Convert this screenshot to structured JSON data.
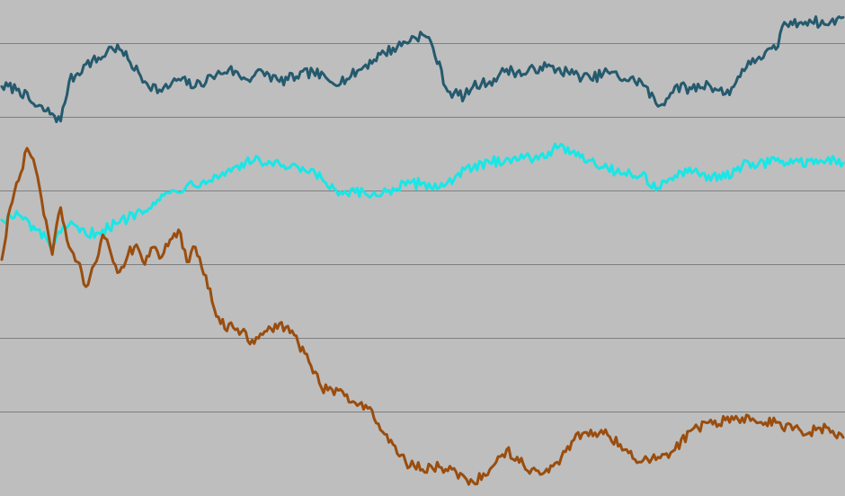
{
  "chart_data": {
    "type": "line",
    "title": "",
    "xlabel": "",
    "ylabel": "",
    "grid": true,
    "legend": "none",
    "xlim": [
      0,
      100
    ],
    "ylim": [
      0,
      100
    ],
    "y_gridlines": [
      16.8,
      31.7,
      46.6,
      61.4,
      76.3,
      91.2
    ],
    "background": "#bebebe",
    "gridline_color": "#7f7f7f",
    "series": [
      {
        "color": "#255a6e",
        "x": [
          0,
          2,
          4,
          6,
          7,
          8,
          10,
          12,
          13,
          14,
          15,
          17,
          19,
          21,
          23,
          25,
          27,
          29,
          31,
          33,
          35,
          37,
          39,
          41,
          43,
          45,
          47,
          49,
          50,
          51,
          53,
          55,
          56,
          57,
          58,
          59,
          60,
          62,
          64,
          66,
          68,
          70,
          72,
          74,
          76,
          78,
          79,
          80,
          82,
          84,
          86,
          87,
          88,
          89,
          90,
          92,
          93,
          94,
          95,
          96,
          98,
          100
        ],
        "y": [
          82.5,
          82,
          78.5,
          77,
          75.5,
          83.5,
          87,
          88.5,
          90.5,
          90,
          88,
          83.5,
          81.5,
          84,
          82.5,
          84.5,
          86,
          84,
          85.5,
          83.5,
          84.5,
          85.5,
          83.5,
          84,
          86.5,
          89,
          90.5,
          92.5,
          93,
          91.5,
          81.5,
          80.5,
          82.5,
          83,
          83.5,
          84.5,
          86,
          85,
          86.5,
          86,
          85,
          84,
          85.5,
          84,
          83.5,
          78.5,
          80,
          82.5,
          82,
          83,
          81,
          82.5,
          86,
          87,
          88.5,
          90,
          95.5,
          95,
          95.5,
          96,
          95,
          96.5
        ]
      },
      {
        "color": "#1ae6e6",
        "x": [
          0,
          2,
          4,
          6,
          8,
          10,
          12,
          14,
          16,
          18,
          20,
          22,
          24,
          26,
          28,
          30,
          32,
          34,
          36,
          38,
          40,
          42,
          44,
          46,
          48,
          50,
          52,
          54,
          56,
          58,
          60,
          62,
          64,
          66,
          68,
          70,
          72,
          74,
          76,
          78,
          80,
          82,
          84,
          86,
          88,
          90,
          92,
          94,
          96,
          98,
          100
        ],
        "y": [
          55.5,
          56.5,
          53.5,
          50.5,
          54.5,
          52.5,
          53.5,
          55,
          57,
          59,
          61,
          62.5,
          63.5,
          64.5,
          66.5,
          67.5,
          67,
          66,
          65.5,
          64,
          60.5,
          61,
          60.5,
          61.5,
          62.5,
          63,
          62,
          64.5,
          66,
          67,
          68,
          68,
          68.5,
          70,
          69.5,
          67.5,
          66,
          65,
          64.5,
          62,
          64.5,
          65,
          64.5,
          64,
          66.5,
          67,
          67.5,
          67,
          67.5,
          67.5,
          67
        ]
      },
      {
        "color": "#9a4d0e",
        "x": [
          0,
          1,
          2,
          3,
          4,
          5,
          6,
          7,
          8,
          9,
          10,
          11,
          12,
          13,
          14,
          15,
          16,
          17,
          18,
          19,
          20,
          21,
          22,
          23,
          24,
          26,
          28,
          30,
          32,
          34,
          36,
          38,
          40,
          42,
          44,
          46,
          48,
          50,
          52,
          54,
          56,
          58,
          60,
          62,
          64,
          66,
          68,
          70,
          72,
          74,
          76,
          78,
          80,
          82,
          84,
          86,
          88,
          90,
          92,
          94,
          96,
          98,
          100
        ],
        "y": [
          47.5,
          58,
          63.5,
          70,
          66,
          56.5,
          48.5,
          58,
          50,
          47,
          42,
          46.5,
          52.5,
          48.5,
          45,
          48.5,
          50.5,
          46.5,
          50,
          48,
          51.5,
          53.5,
          47,
          50,
          44.5,
          34.5,
          33.5,
          30.5,
          33.5,
          34,
          28.5,
          21.5,
          21,
          18.5,
          17,
          10.5,
          6.5,
          5,
          5.5,
          4.5,
          2.5,
          5,
          9,
          6,
          4,
          6.5,
          11,
          13,
          12,
          9,
          6.5,
          7.5,
          9,
          13,
          14.5,
          15,
          15.5,
          14.5,
          14.5,
          13,
          12.5,
          13.5,
          11.5
        ]
      }
    ]
  }
}
